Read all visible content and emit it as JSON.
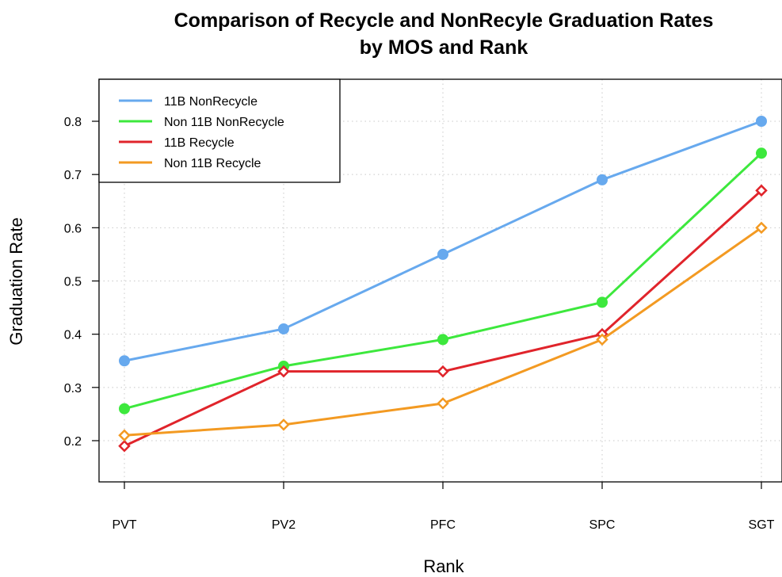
{
  "chart_data": {
    "type": "line",
    "title": "Comparison of Recycle and NonRecyle Graduation Rates",
    "subtitle": "by MOS and Rank",
    "xlabel": "Rank",
    "ylabel": "Graduation Rate",
    "categories": [
      "PVT",
      "PV2",
      "PFC",
      "SPC",
      "SGT"
    ],
    "yticks": [
      "0.2",
      "0.3",
      "0.4",
      "0.5",
      "0.6",
      "0.7",
      "0.8"
    ],
    "ylim": [
      0.14,
      0.87
    ],
    "grid": true,
    "legend_position": "top-left",
    "series": [
      {
        "name": "11B NonRecycle",
        "color": "#67A9EE",
        "marker": "filled-circle",
        "values": [
          0.35,
          0.41,
          0.55,
          0.69,
          0.8
        ]
      },
      {
        "name": "Non 11B NonRecycle",
        "color": "#3DE83D",
        "marker": "filled-circle",
        "values": [
          0.26,
          0.34,
          0.39,
          0.46,
          0.74
        ]
      },
      {
        "name": "11B Recycle",
        "color": "#E0242B",
        "marker": "open-diamond",
        "values": [
          0.19,
          0.33,
          0.33,
          0.4,
          0.67
        ]
      },
      {
        "name": "Non 11B Recycle",
        "color": "#F39A22",
        "marker": "open-diamond",
        "values": [
          0.21,
          0.23,
          0.27,
          0.39,
          0.6
        ]
      }
    ]
  }
}
